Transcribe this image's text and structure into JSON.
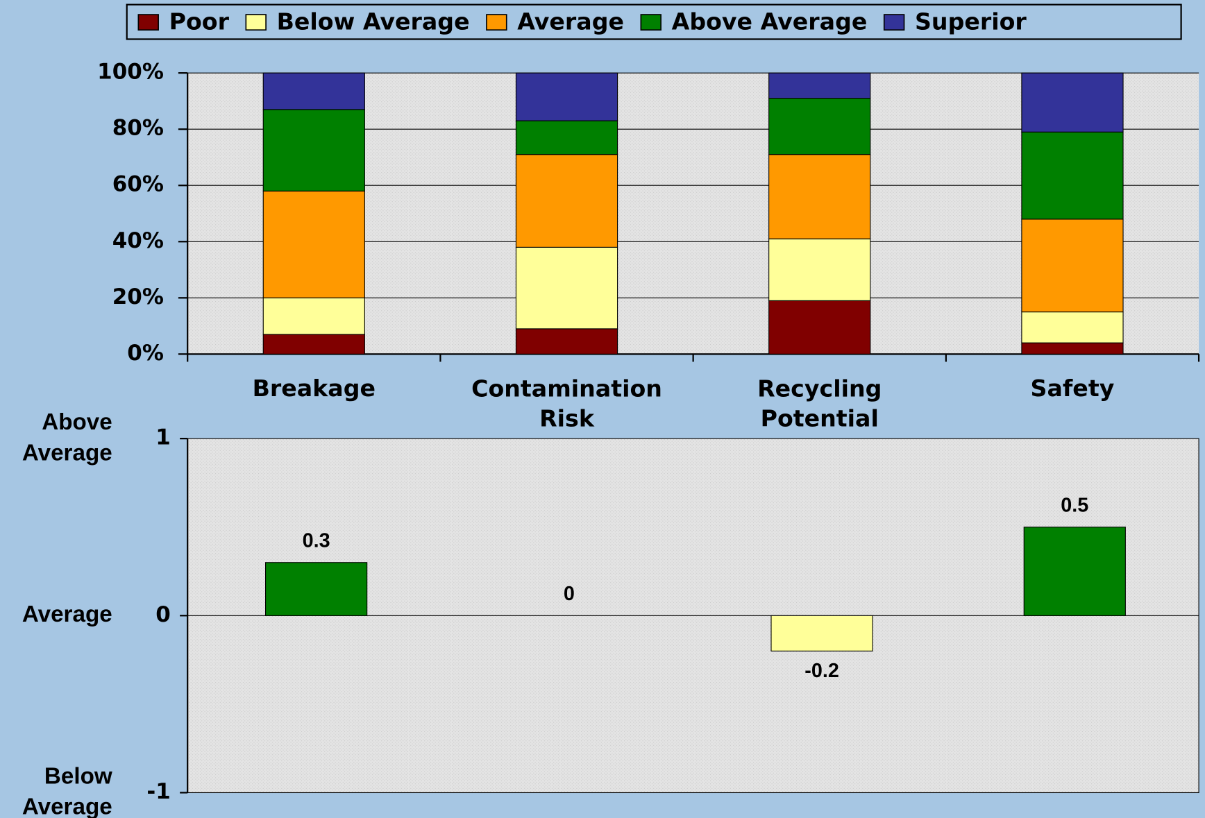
{
  "chart_data": [
    {
      "type": "stacked_bar",
      "categories": [
        "Breakage",
        "Contamination Risk",
        "Recycling Potential",
        "Safety"
      ],
      "series": [
        {
          "name": "Poor",
          "color": "#800000",
          "values": [
            7,
            9,
            19,
            4
          ]
        },
        {
          "name": "Below Average",
          "color": "#ffff99",
          "values": [
            13,
            29,
            22,
            11
          ]
        },
        {
          "name": "Average",
          "color": "#ff9900",
          "values": [
            38,
            33,
            30,
            33
          ]
        },
        {
          "name": "Above Average",
          "color": "#008000",
          "values": [
            29,
            12,
            20,
            31
          ]
        },
        {
          "name": "Superior",
          "color": "#333399",
          "values": [
            13,
            17,
            9,
            21
          ]
        }
      ],
      "ylim": [
        0,
        100
      ],
      "yticks": [
        {
          "value": 0,
          "label": "0%"
        },
        {
          "value": 20,
          "label": "20%"
        },
        {
          "value": 40,
          "label": "40%"
        },
        {
          "value": 60,
          "label": "60%"
        },
        {
          "value": 80,
          "label": "80%"
        },
        {
          "value": 100,
          "label": "100%"
        }
      ],
      "grid": true,
      "legend": "top"
    },
    {
      "type": "bar",
      "values": [
        0.3,
        0,
        -0.2,
        0.5
      ],
      "colors": [
        "#008000",
        "#008000",
        "#ffff99",
        "#008000"
      ],
      "ylim": [
        -1,
        1
      ],
      "yticks": [
        -1,
        0,
        1
      ],
      "axis_annotations": [
        {
          "value": 1,
          "text": "Above Average"
        },
        {
          "value": 0,
          "text": "Average"
        },
        {
          "value": -1,
          "text": "Below Average"
        }
      ]
    }
  ]
}
